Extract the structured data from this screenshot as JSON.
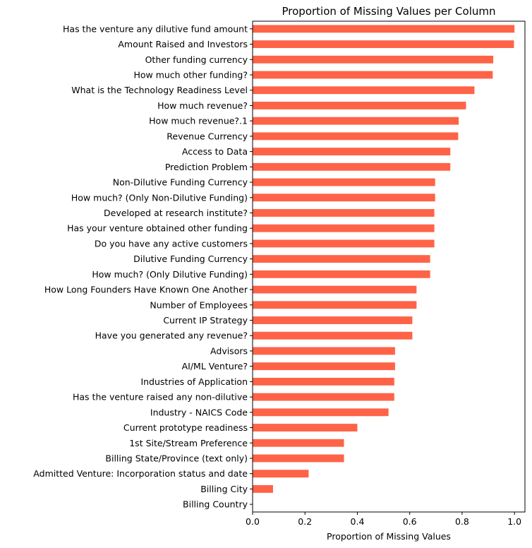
{
  "chart_data": {
    "type": "bar",
    "orientation": "horizontal",
    "title": "Proportion of Missing Values per Column",
    "xlabel": "Proportion of Missing Values",
    "ylabel": "",
    "xlim": [
      0,
      1.04
    ],
    "xticks": [
      0.0,
      0.2,
      0.4,
      0.6,
      0.8,
      1.0
    ],
    "xtick_labels": [
      "0.0",
      "0.2",
      "0.4",
      "0.6",
      "0.8",
      "1.0"
    ],
    "bar_color": "#ff6347",
    "grid": false,
    "categories": [
      "Has the venture any dilutive fund amount",
      "Amount Raised and Investors",
      "Other funding currency",
      "How much other funding?",
      "What is the Technology Readiness Level",
      "How much revenue?",
      "How much revenue?.1",
      "Revenue Currency",
      "Access to Data",
      "Prediction Problem",
      "Non-Dilutive Funding Currency",
      "How much? (Only Non-Dilutive Funding)",
      "Developed at research institute?",
      "Has your venture obtained other funding",
      "Do you have any active customers",
      "Dilutive Funding Currency",
      "How much? (Only Dilutive Funding)",
      "How Long Founders Have Known One Another",
      "Number of Employees",
      "Current IP Strategy",
      "Have you generated any revenue?",
      "Advisors",
      "AI/ML Venture?",
      "Industries of Application",
      "Has the venture raised any non-dilutive",
      "Industry - NAICS Code",
      "Current prototype readiness",
      "1st Site/Stream Preference",
      "Billing State/Province (text only)",
      "Admitted Venture: Incorporation status and date",
      "Billing City",
      "Billing Country"
    ],
    "values": [
      1.0,
      0.998,
      0.919,
      0.917,
      0.847,
      0.815,
      0.787,
      0.785,
      0.755,
      0.755,
      0.697,
      0.697,
      0.694,
      0.694,
      0.694,
      0.678,
      0.678,
      0.626,
      0.626,
      0.61,
      0.61,
      0.544,
      0.544,
      0.541,
      0.541,
      0.519,
      0.4,
      0.349,
      0.349,
      0.214,
      0.078,
      0.0
    ]
  }
}
